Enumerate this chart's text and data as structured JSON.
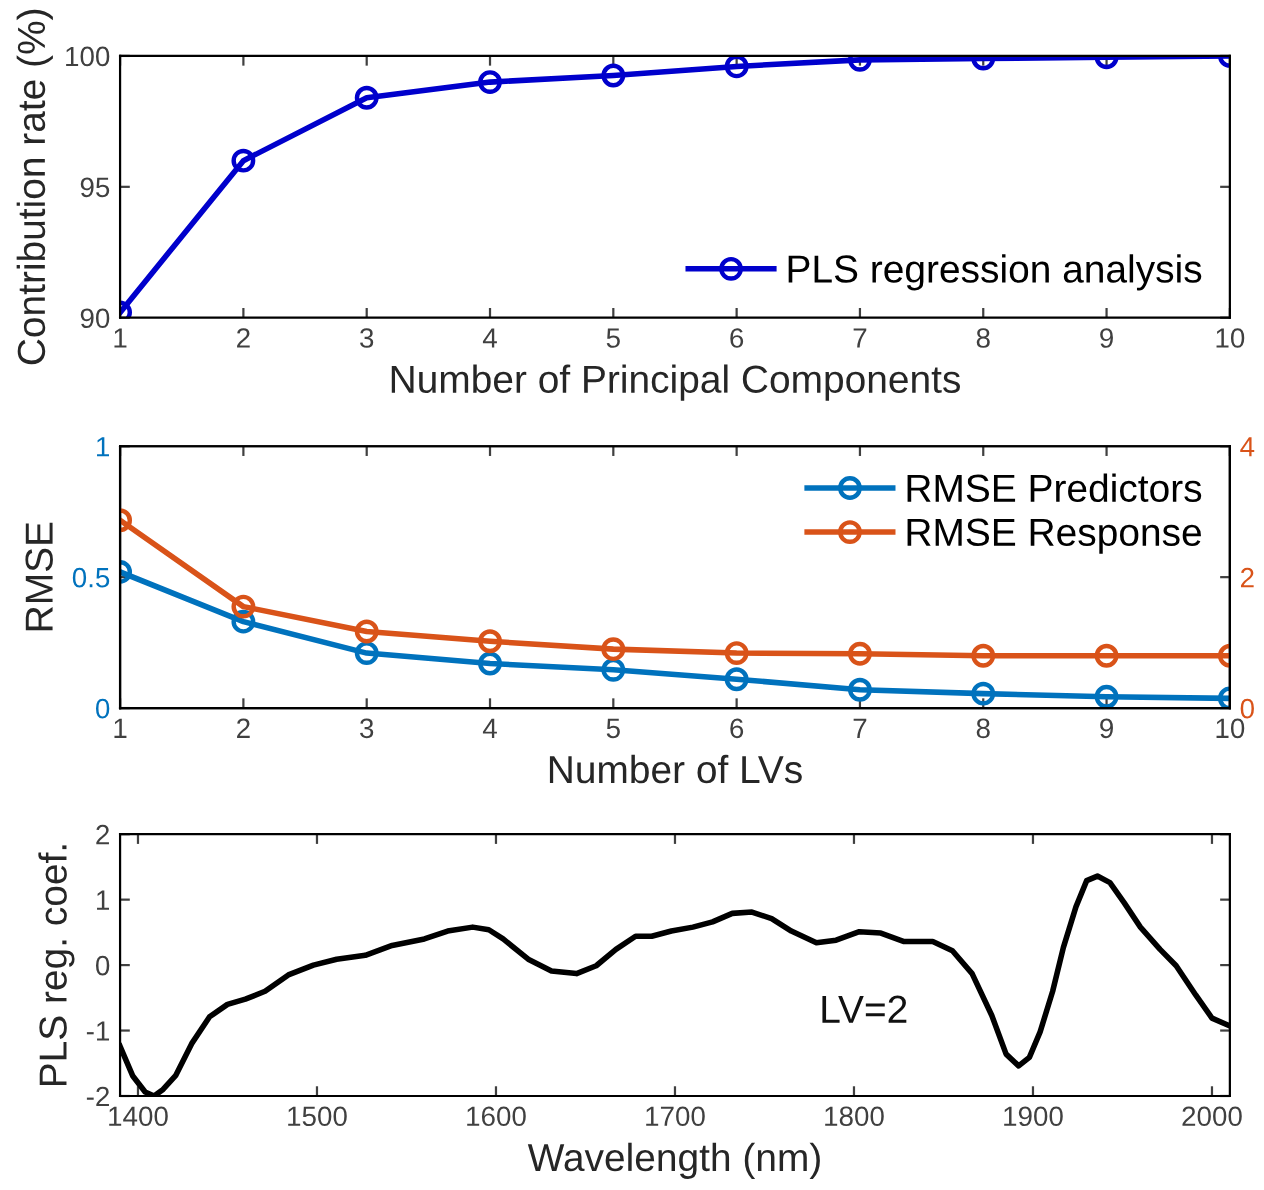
{
  "chart_data": [
    {
      "type": "line",
      "xlabel": "Number of Principal Components",
      "ylabel": "Contribution rate (%)",
      "x": [
        1,
        2,
        3,
        4,
        5,
        6,
        7,
        8,
        9,
        10
      ],
      "xlim": [
        1,
        10
      ],
      "xticks": [
        1,
        2,
        3,
        4,
        5,
        6,
        7,
        8,
        9,
        10
      ],
      "ylim": [
        90,
        100
      ],
      "yticks": [
        90,
        95,
        100
      ],
      "marker": "circle",
      "legend": "bottom right",
      "series": [
        {
          "name": "PLS regression analysis",
          "color": "#0000cc",
          "values": [
            90.2,
            96.0,
            98.4,
            99.0,
            99.25,
            99.6,
            99.85,
            99.9,
            99.95,
            100
          ]
        }
      ]
    },
    {
      "type": "line",
      "xlabel": "Number of LVs",
      "ylabel": "RMSE",
      "x": [
        1,
        2,
        3,
        4,
        5,
        6,
        7,
        8,
        9,
        10
      ],
      "xlim": [
        1,
        10
      ],
      "xticks": [
        1,
        2,
        3,
        4,
        5,
        6,
        7,
        8,
        9,
        10
      ],
      "ylim": [
        0,
        1
      ],
      "yticks": [
        0,
        0.5,
        1
      ],
      "y2lim": [
        0,
        4
      ],
      "y2ticks": [
        0,
        2,
        4
      ],
      "marker": "circle",
      "legend": "top right",
      "series": [
        {
          "name": "RMSE Predictors",
          "color": "#0072bd",
          "values": [
            0.52,
            0.33,
            0.21,
            0.17,
            0.146,
            0.11,
            0.07,
            0.055,
            0.043,
            0.037
          ]
        },
        {
          "name": "RMSE Response",
          "color": "#d95319",
          "axis": "y2",
          "values": [
            2.87,
            1.55,
            1.17,
            1.02,
            0.9,
            0.84,
            0.83,
            0.8,
            0.8,
            0.8
          ]
        }
      ]
    },
    {
      "type": "line",
      "xlabel": "Wavelength (nm)",
      "ylabel": "PLS reg. coef.",
      "xlim": [
        1390,
        2010
      ],
      "xticks": [
        1400,
        1500,
        1600,
        1700,
        1800,
        1900,
        2000
      ],
      "ylim": [
        -2,
        2
      ],
      "yticks": [
        -2,
        -1,
        0,
        1,
        2
      ],
      "annotations": [
        "LV=2"
      ],
      "x": [
        1390,
        1397,
        1404,
        1409,
        1414,
        1421,
        1430,
        1440,
        1450,
        1460,
        1471,
        1484,
        1498,
        1511,
        1527,
        1542,
        1560,
        1573,
        1587,
        1596,
        1604,
        1618,
        1631,
        1645,
        1656,
        1667,
        1678,
        1687,
        1698,
        1710,
        1721,
        1732,
        1743,
        1754,
        1765,
        1779,
        1790,
        1803,
        1815,
        1828,
        1844,
        1855,
        1866,
        1877,
        1885,
        1892,
        1898,
        1904,
        1911,
        1917,
        1924,
        1930,
        1936,
        1943,
        1951,
        1960,
        1971,
        1980,
        1991,
        2000,
        2010
      ],
      "series": [
        {
          "color": "#000000",
          "values": [
            -1.24,
            -1.69,
            -1.94,
            -2.0,
            -1.9,
            -1.69,
            -1.2,
            -0.79,
            -0.6,
            -0.52,
            -0.4,
            -0.15,
            0,
            0.09,
            0.15,
            0.3,
            0.4,
            0.52,
            0.58,
            0.54,
            0.4,
            0.09,
            -0.09,
            -0.13,
            -0.01,
            0.24,
            0.44,
            0.44,
            0.52,
            0.58,
            0.66,
            0.79,
            0.81,
            0.71,
            0.52,
            0.34,
            0.38,
            0.51,
            0.49,
            0.36,
            0.36,
            0.22,
            -0.13,
            -0.77,
            -1.36,
            -1.54,
            -1.41,
            -1.02,
            -0.4,
            0.27,
            0.89,
            1.29,
            1.36,
            1.26,
            0.95,
            0.58,
            0.24,
            -0.01,
            -0.46,
            -0.81,
            -0.93
          ]
        }
      ]
    }
  ]
}
